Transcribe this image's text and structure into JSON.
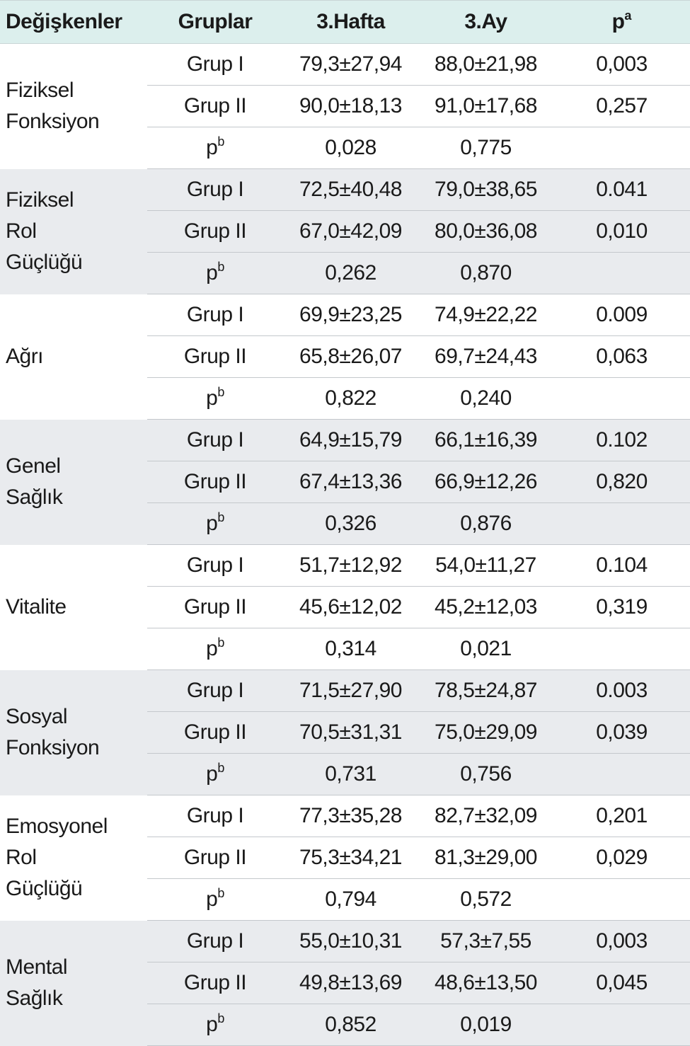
{
  "header": {
    "variable": "Değişkenler",
    "group": "Gruplar",
    "week3": "3.Hafta",
    "month3": "3.Ay",
    "p_base": "p",
    "p_sup": "a"
  },
  "pb_base": "p",
  "pb_sup": "b",
  "rows": [
    {
      "name": [
        "Fiziksel",
        "Fonksiyon"
      ],
      "g1": {
        "label": "Grup I",
        "w3": "79,3±27,94",
        "m3": "88,0±21,98",
        "p": "0,003"
      },
      "g2": {
        "label": "Grup II",
        "w3": "90,0±18,13",
        "m3": "91,0±17,68",
        "p": "0,257"
      },
      "pb": {
        "w3": "0,028",
        "m3": "0,775"
      }
    },
    {
      "name": [
        "Fiziksel",
        "Rol",
        "Güçlüğü"
      ],
      "g1": {
        "label": "Grup I",
        "w3": "72,5±40,48",
        "m3": "79,0±38,65",
        "p": "0.041"
      },
      "g2": {
        "label": "Grup II",
        "w3": "67,0±42,09",
        "m3": "80,0±36,08",
        "p": "0,010"
      },
      "pb": {
        "w3": "0,262",
        "m3": "0,870"
      }
    },
    {
      "name": [
        "Ağrı"
      ],
      "g1": {
        "label": "Grup I",
        "w3": "69,9±23,25",
        "m3": "74,9±22,22",
        "p": "0.009"
      },
      "g2": {
        "label": "Grup II",
        "w3": "65,8±26,07",
        "m3": "69,7±24,43",
        "p": "0,063"
      },
      "pb": {
        "w3": "0,822",
        "m3": "0,240"
      }
    },
    {
      "name": [
        "Genel",
        "Sağlık"
      ],
      "g1": {
        "label": "Grup I",
        "w3": "64,9±15,79",
        "m3": "66,1±16,39",
        "p": "0.102"
      },
      "g2": {
        "label": "Grup II",
        "w3": "67,4±13,36",
        "m3": "66,9±12,26",
        "p": "0,820"
      },
      "pb": {
        "w3": "0,326",
        "m3": "0,876"
      }
    },
    {
      "name": [
        "Vitalite"
      ],
      "g1": {
        "label": "Grup I",
        "w3": "51,7±12,92",
        "m3": "54,0±11,27",
        "p": "0.104"
      },
      "g2": {
        "label": "Grup II",
        "w3": "45,6±12,02",
        "m3": "45,2±12,03",
        "p": "0,319"
      },
      "pb": {
        "w3": "0,314",
        "m3": "0,021"
      }
    },
    {
      "name": [
        "Sosyal",
        "Fonksiyon"
      ],
      "g1": {
        "label": "Grup I",
        "w3": "71,5±27,90",
        "m3": "78,5±24,87",
        "p": "0.003"
      },
      "g2": {
        "label": "Grup II",
        "w3": "70,5±31,31",
        "m3": "75,0±29,09",
        "p": "0,039"
      },
      "pb": {
        "w3": "0,731",
        "m3": "0,756"
      }
    },
    {
      "name": [
        "Emosyonel",
        "Rol",
        "Güçlüğü"
      ],
      "g1": {
        "label": "Grup I",
        "w3": "77,3±35,28",
        "m3": "82,7±32,09",
        "p": "0,201"
      },
      "g2": {
        "label": "Grup II",
        "w3": "75,3±34,21",
        "m3": "81,3±29,00",
        "p": "0,029"
      },
      "pb": {
        "w3": "0,794",
        "m3": "0,572"
      }
    },
    {
      "name": [
        "Mental",
        "Sağlık"
      ],
      "g1": {
        "label": "Grup I",
        "w3": "55,0±10,31",
        "m3": "57,3±7,55",
        "p": "0,003"
      },
      "g2": {
        "label": "Grup II",
        "w3": "49,8±13,69",
        "m3": "48,6±13,50",
        "p": "0,045"
      },
      "pb": {
        "w3": "0,852",
        "m3": "0,019"
      }
    }
  ]
}
